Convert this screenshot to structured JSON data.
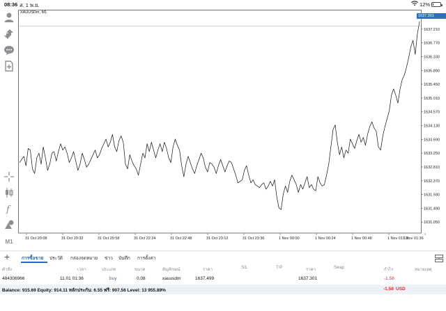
{
  "status_bar": {
    "time": "08:36",
    "date": "ส. 1 พ.ย.",
    "battery": "12%",
    "battery_level": 0.12
  },
  "toolbar": {
    "items": [
      {
        "icon": "person-icon"
      },
      {
        "icon": "arrows-updown-icon"
      },
      {
        "icon": "chat-icon"
      },
      {
        "icon": "add-document-icon"
      },
      {
        "icon": "crosshair-icon"
      },
      {
        "icon": "candlestick-icon"
      },
      {
        "icon": "function-icon"
      },
      {
        "icon": "objects-icon"
      }
    ],
    "timeframe": "M1"
  },
  "chart": {
    "symbol_title": "XAUUSDm, M1",
    "current_price_tag": "1637.301"
  },
  "chart_data": {
    "type": "line",
    "y_ticks": [
      "1637.210",
      "1636.770",
      "1636.330",
      "1635.890",
      "1635.450",
      "1635.010",
      "1634.570",
      "1634.130",
      "1633.690",
      "1633.250",
      "1632.810",
      "1632.370",
      "1631.930",
      "1631.490",
      "1631.050"
    ],
    "ylim": [
      1630.7,
      1637.65
    ],
    "x_ticks": [
      "31 Oct 20:08",
      "31 Oct 20:32",
      "31 Oct 20:58",
      "31 Oct 22:24",
      "31 Oct 22:48",
      "31 Oct 23:12",
      "31 Oct 23:36",
      "1 Nov 00:00",
      "1 Nov 00:24",
      "1 Nov 00:48",
      "1 Nov 01:12",
      "1 Nov 01:36"
    ],
    "values": [
      1632.95,
      1633.05,
      1633.15,
      1632.85,
      1633.4,
      1633.35,
      1632.75,
      1632.6,
      1633.1,
      1633.25,
      1632.9,
      1633.45,
      1633.1,
      1632.7,
      1632.9,
      1633.25,
      1633.3,
      1633.0,
      1633.3,
      1633.55,
      1633.35,
      1633.45,
      1633.25,
      1632.95,
      1633.1,
      1633.3,
      1633.0,
      1632.7,
      1632.9,
      1633.25,
      1633.05,
      1632.8,
      1632.9,
      1633.05,
      1633.2,
      1633.35,
      1633.1,
      1633.2,
      1633.4,
      1633.55,
      1633.7,
      1633.45,
      1633.6,
      1633.85,
      1633.45,
      1633.3,
      1633.65,
      1633.8,
      1633.6,
      1632.9,
      1632.75,
      1633.2,
      1633.0,
      1632.85,
      1632.75,
      1632.55,
      1632.9,
      1633.25,
      1633.1,
      1633.55,
      1633.3,
      1633.6,
      1633.35,
      1633.1,
      1633.35,
      1633.55,
      1633.3,
      1633.6,
      1633.4,
      1633.1,
      1632.95,
      1633.45,
      1633.7,
      1633.5,
      1633.35,
      1632.85,
      1632.5,
      1632.9,
      1633.15,
      1632.95,
      1632.75,
      1632.6,
      1632.85,
      1633.05,
      1633.25,
      1633.1,
      1632.8,
      1632.65,
      1632.95,
      1632.9,
      1632.8,
      1632.6,
      1632.85,
      1633.05,
      1632.85,
      1632.65,
      1632.85,
      1633.0,
      1632.95,
      1632.75,
      1632.55,
      1632.3,
      1632.35,
      1632.4,
      1632.7,
      1632.85,
      1632.55,
      1632.3,
      1632.4,
      1632.25,
      1632.2,
      1632.15,
      1632.25,
      1632.3,
      1632.1,
      1632.2,
      1632.35,
      1632.2,
      1632.4,
      1631.85,
      1631.5,
      1631.45,
      1631.95,
      1632.2,
      1632.0,
      1632.35,
      1632.55,
      1632.4,
      1632.25,
      1632.0,
      1632.25,
      1632.1,
      1632.3,
      1632.5,
      1632.15,
      1632.25,
      1632.1,
      1632.05,
      1632.5,
      1632.3,
      1632.2,
      1632.25,
      1632.55,
      1632.9,
      1633.45,
      1634.0,
      1634.15,
      1633.6,
      1633.2,
      1633.45,
      1633.1,
      1633.35,
      1633.25,
      1633.7,
      1633.55,
      1633.4,
      1633.65,
      1633.85,
      1633.6,
      1633.75,
      1633.5,
      1633.85,
      1634.1,
      1634.25,
      1634.05,
      1633.95,
      1633.45,
      1633.35,
      1633.8,
      1634.1,
      1634.35,
      1634.6,
      1635.1,
      1635.3,
      1635.1,
      1634.85,
      1635.3,
      1635.6,
      1635.75,
      1636.0,
      1636.3,
      1636.65,
      1636.85,
      1636.4,
      1637.05,
      1637.45
    ]
  },
  "bottom_panel": {
    "tabs": [
      "การซื้อขาย",
      "ประวัติ",
      "กล่องจดหมาย",
      "ข่าว",
      "บันทึก",
      "การตั้งค่า"
    ],
    "columns": [
      "คำสั่ง",
      "เวลา",
      "ประเภท",
      "ขนาด",
      "สัญลักษณ์",
      "ราคา",
      "S/L",
      "T/P",
      "ราคา",
      "Swap",
      "กำไร",
      "หมายเหตุ"
    ],
    "order": {
      "id": "484306966",
      "time": "11.01 01:36",
      "type": "buy",
      "size": "0.08",
      "symbol": "xauusdm",
      "open_price": "1637.499",
      "current_price": "1637.301",
      "profit": "-1.58"
    },
    "balance_line": "Balance: 915.69 Equity: 914.11 หลักประกัน: 6.55 ฟรี: 907.56 Level: 13 955.89%",
    "balance_profit": "-1.58",
    "currency": "USD"
  },
  "colors": {
    "accent": "#2468c2",
    "loss": "#d62c2c",
    "price_tag": "#2f6fb7"
  }
}
